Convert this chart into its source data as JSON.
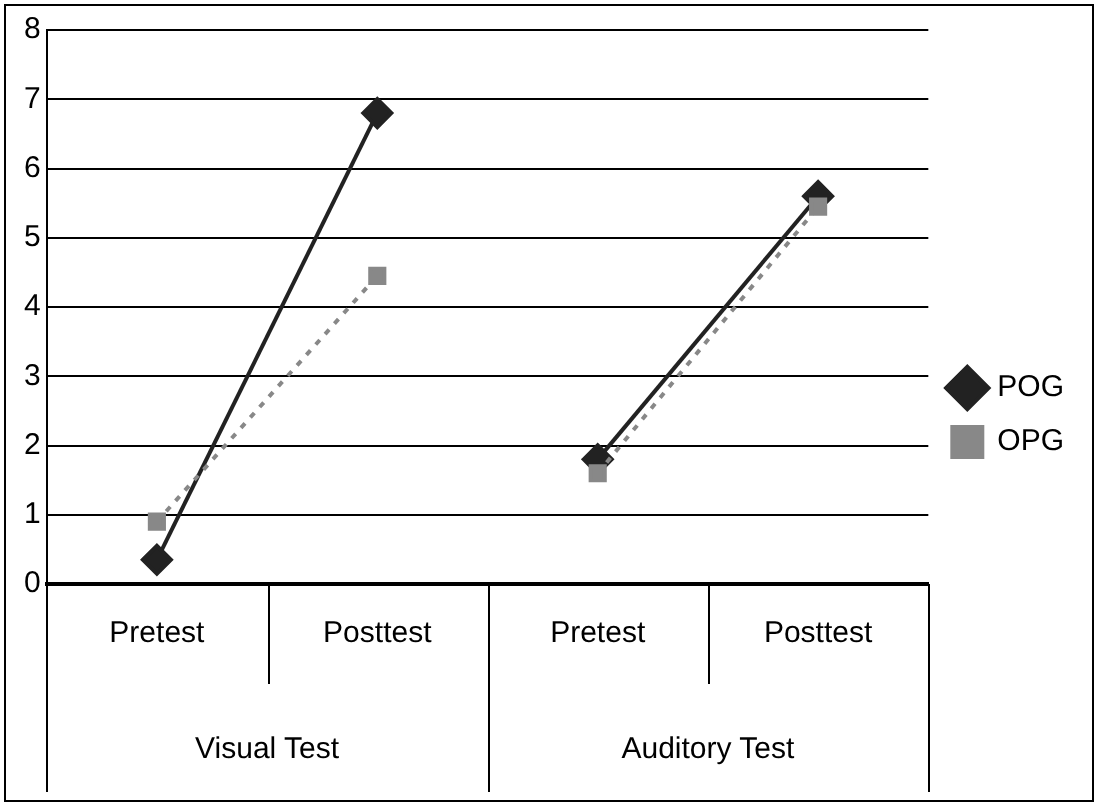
{
  "chart_data": {
    "type": "line",
    "categories": [
      "Pretest",
      "Posttest",
      "Pretest",
      "Posttest"
    ],
    "annotations": [
      "Visual Test",
      "Auditory Test"
    ],
    "series": [
      {
        "name": "POG",
        "color": "#222222",
        "values": [
          0.35,
          6.8,
          1.8,
          5.6
        ],
        "marker": "diamond",
        "line_style": "solid"
      },
      {
        "name": "OPG",
        "color": "#888888",
        "values": [
          0.9,
          4.45,
          1.6,
          5.45
        ],
        "marker": "square",
        "line_style": "dotted"
      }
    ],
    "ylim": [
      0,
      8
    ],
    "yticks": [
      0,
      1,
      2,
      3,
      4,
      5,
      6,
      7,
      8
    ],
    "grid": "y",
    "legend": "right"
  }
}
